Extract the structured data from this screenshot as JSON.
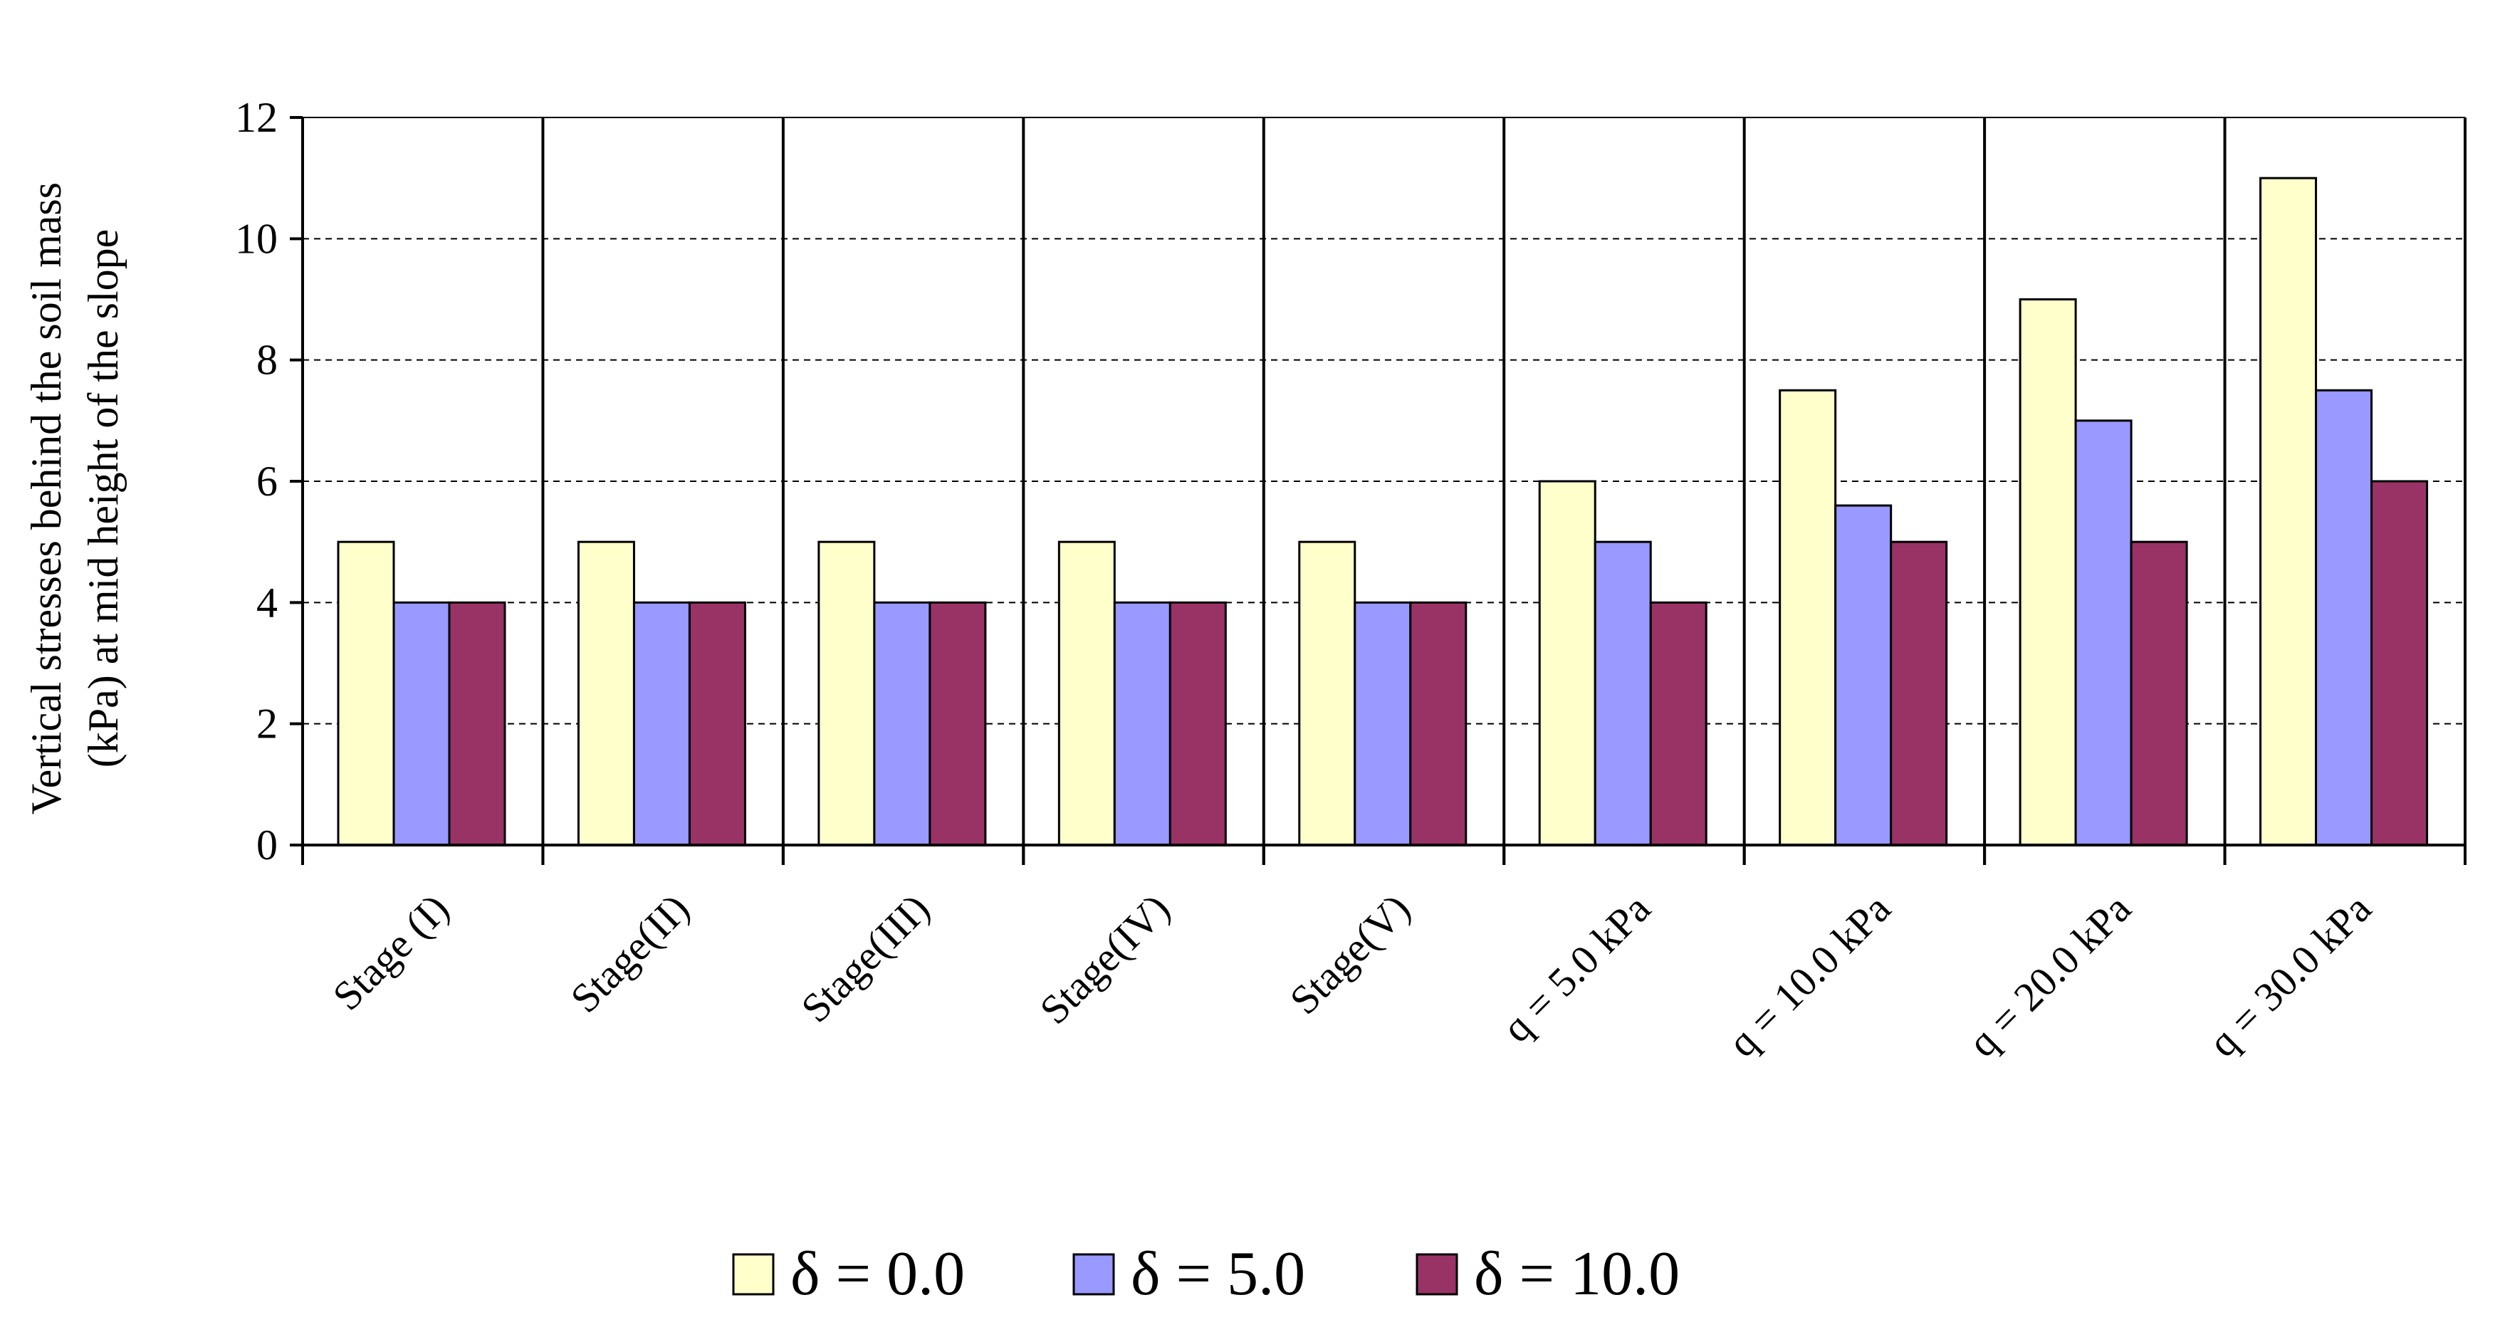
{
  "chart_data": {
    "type": "bar",
    "title": "",
    "xlabel": "",
    "ylabel_line1": "Vertical stresses behind the soil mass",
    "ylabel_line2": "(kPa) at mid height of the slope",
    "ylim": [
      0,
      12
    ],
    "yticks": [
      0,
      2,
      4,
      6,
      8,
      10,
      12
    ],
    "grid": "horizontal dashed",
    "legend_position": "bottom",
    "categories": [
      "Stage (I)",
      "Stage(II)",
      "Stage(III)",
      "Stage(IV)",
      "Stage(V)",
      "q = 5.0 kPa",
      "q = 10.0 kPa",
      "q = 20.0 kPa",
      "q = 30.0 kPa"
    ],
    "series": [
      {
        "name": "δ = 0.0",
        "color": "#FFFFCC",
        "values": [
          5,
          5,
          5,
          5,
          5,
          6,
          7.5,
          9,
          11
        ]
      },
      {
        "name": "δ = 5.0",
        "color": "#9999FF",
        "values": [
          4,
          4,
          4,
          4,
          4,
          5,
          5.6,
          7,
          7.5
        ]
      },
      {
        "name": "δ = 10.0",
        "color": "#993366",
        "values": [
          4,
          4,
          4,
          4,
          4,
          4,
          5,
          5,
          6
        ]
      }
    ]
  }
}
